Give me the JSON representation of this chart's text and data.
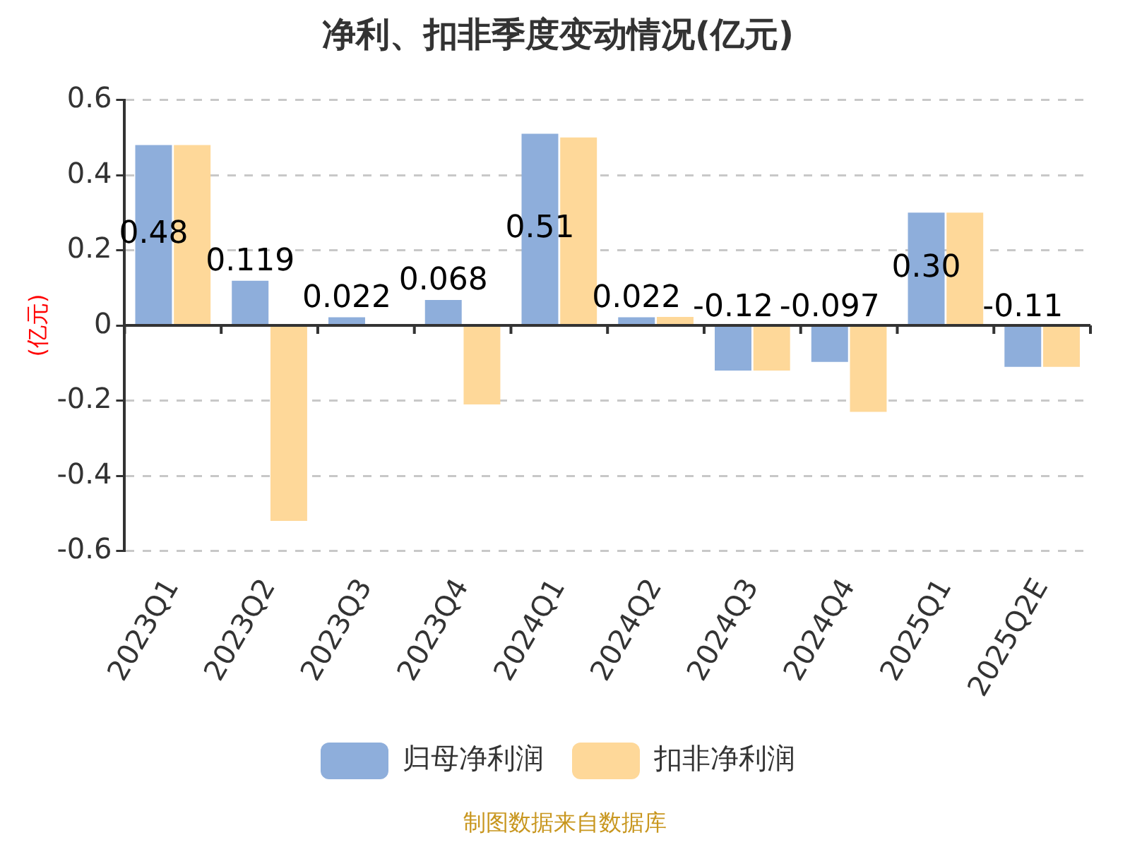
{
  "chart_data": {
    "type": "bar",
    "title": "净利、扣非季度变动情况(亿元)",
    "ylabel": "(亿元)",
    "categories": [
      "2023Q1",
      "2023Q2",
      "2023Q3",
      "2023Q4",
      "2024Q1",
      "2024Q2",
      "2024Q3",
      "2024Q4",
      "2025Q1",
      "2025Q2E"
    ],
    "series": [
      {
        "name": "归母净利润",
        "color": "#8eaedb",
        "values": [
          0.48,
          0.119,
          0.022,
          0.068,
          0.51,
          0.022,
          -0.12,
          -0.097,
          0.3,
          -0.11
        ],
        "value_labels": [
          "0.48",
          "0.119",
          "0.022",
          "0.068",
          "0.51",
          "0.022",
          "-0.12",
          "-0.097",
          "0.30",
          "-0.11"
        ]
      },
      {
        "name": "扣非净利润",
        "color": "#fed899",
        "values": [
          0.48,
          -0.52,
          null,
          -0.21,
          0.5,
          0.023,
          -0.12,
          -0.23,
          0.3,
          -0.11
        ]
      }
    ],
    "ylim": [
      -0.6,
      0.6
    ],
    "yticks": [
      -0.6,
      -0.4,
      -0.2,
      0,
      0.2,
      0.4,
      0.6
    ],
    "grid": "y",
    "legend": "bottom",
    "annotations": [
      "制图数据来自数据库"
    ]
  }
}
